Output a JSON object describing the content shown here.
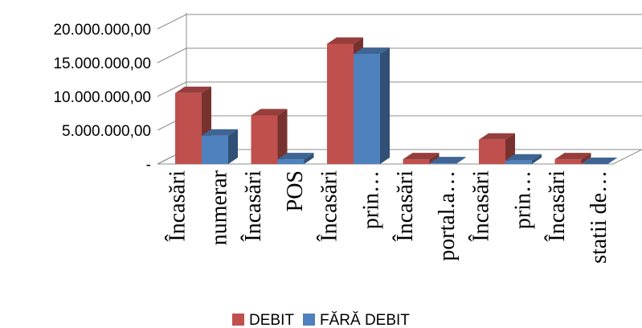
{
  "chart_data": {
    "type": "bar",
    "style": "3d-clustered-column",
    "categories": [
      [
        "Încasări",
        "numerar"
      ],
      [
        "Încasări",
        "POS"
      ],
      [
        "Încasări",
        "prin…"
      ],
      [
        "Încasări",
        "portal.a…"
      ],
      [
        "Încasări",
        "prin…"
      ],
      [
        "Încasări",
        "statii de…"
      ]
    ],
    "series": [
      {
        "name": "DEBIT",
        "color": "#C0504D",
        "values": [
          10500000,
          7200000,
          17800000,
          700000,
          3600000,
          700000
        ]
      },
      {
        "name": "FĂRĂ DEBIT",
        "color": "#4F81BD",
        "values": [
          4200000,
          700000,
          16300000,
          100000,
          500000,
          0
        ]
      }
    ],
    "yticks": [
      "-",
      "5.000.000,00",
      "10.000.000,00",
      "15.000.000,00",
      "20.000.000,00"
    ],
    "ytick_values": [
      0,
      5000000,
      10000000,
      15000000,
      20000000
    ],
    "ylim": [
      0,
      22000000
    ],
    "title": "",
    "xlabel": "",
    "ylabel": "",
    "grid": true,
    "legend_position": "bottom"
  }
}
